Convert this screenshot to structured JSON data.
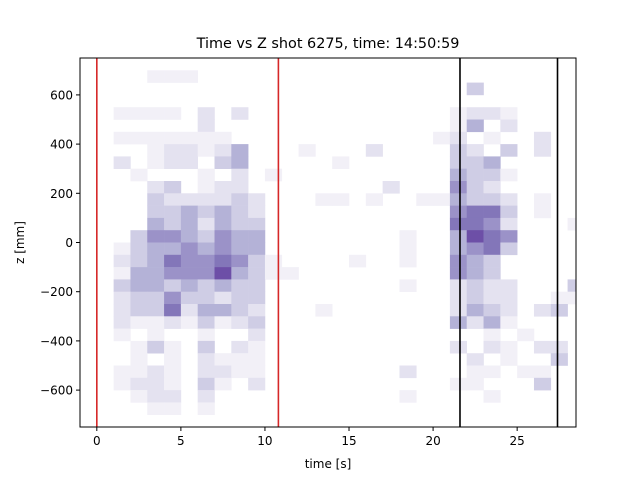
{
  "chart_data": {
    "type": "heatmap",
    "title": "Time vs Z shot 6275, time: 14:50:59",
    "xlabel": "time [s]",
    "ylabel": "z [mm]",
    "xlim": [
      -1,
      28.5
    ],
    "ylim": [
      -750,
      750
    ],
    "xticks": [
      0,
      5,
      10,
      15,
      20,
      25
    ],
    "xtick_labels": [
      "0",
      "5",
      "10",
      "15",
      "20",
      "25"
    ],
    "yticks": [
      -600,
      -400,
      -200,
      0,
      200,
      400,
      600
    ],
    "ytick_labels": [
      "−600",
      "−400",
      "−200",
      "0",
      "200",
      "400",
      "600"
    ],
    "grid": false,
    "colormap": "Purples",
    "bin_width_s": 1.0,
    "bin_height_mm": 50,
    "cells": [
      [
        3.5,
        675,
        1
      ],
      [
        4.5,
        675,
        1
      ],
      [
        5.5,
        675,
        1
      ],
      [
        22.5,
        625,
        3
      ],
      [
        1.5,
        525,
        1
      ],
      [
        2.5,
        525,
        1
      ],
      [
        3.5,
        525,
        1
      ],
      [
        4.5,
        525,
        1
      ],
      [
        6.5,
        525,
        2
      ],
      [
        8.5,
        525,
        2
      ],
      [
        21.5,
        525,
        1
      ],
      [
        22.5,
        525,
        2
      ],
      [
        23.5,
        525,
        2
      ],
      [
        24.5,
        525,
        1
      ],
      [
        6.5,
        475,
        2
      ],
      [
        21.5,
        475,
        1
      ],
      [
        22.5,
        475,
        4
      ],
      [
        24.5,
        475,
        2
      ],
      [
        1.5,
        425,
        1
      ],
      [
        2.5,
        425,
        1
      ],
      [
        3.5,
        425,
        1
      ],
      [
        4.5,
        425,
        1
      ],
      [
        5.5,
        425,
        1
      ],
      [
        6.5,
        425,
        1
      ],
      [
        7.5,
        425,
        1
      ],
      [
        20.5,
        425,
        1
      ],
      [
        21.5,
        425,
        2
      ],
      [
        23.5,
        425,
        1
      ],
      [
        26.5,
        425,
        2
      ],
      [
        3.5,
        375,
        1
      ],
      [
        4.5,
        375,
        2
      ],
      [
        5.5,
        375,
        2
      ],
      [
        6.5,
        375,
        1
      ],
      [
        7.5,
        375,
        2
      ],
      [
        8.5,
        375,
        4
      ],
      [
        12.5,
        375,
        1
      ],
      [
        16.5,
        375,
        2
      ],
      [
        21.5,
        375,
        3
      ],
      [
        22.5,
        375,
        2
      ],
      [
        24.5,
        375,
        3
      ],
      [
        26.5,
        375,
        2
      ],
      [
        1.5,
        325,
        2
      ],
      [
        3.5,
        325,
        1
      ],
      [
        4.5,
        325,
        2
      ],
      [
        5.5,
        325,
        2
      ],
      [
        7.5,
        325,
        3
      ],
      [
        8.5,
        325,
        4
      ],
      [
        14.5,
        325,
        1
      ],
      [
        21.5,
        325,
        3
      ],
      [
        22.5,
        325,
        3
      ],
      [
        23.5,
        325,
        4
      ],
      [
        2.5,
        275,
        1
      ],
      [
        6.5,
        275,
        1
      ],
      [
        8.5,
        275,
        2
      ],
      [
        10.5,
        275,
        1
      ],
      [
        21.5,
        275,
        4
      ],
      [
        22.5,
        275,
        3
      ],
      [
        23.5,
        275,
        3
      ],
      [
        24.5,
        275,
        1
      ],
      [
        3.5,
        225,
        2
      ],
      [
        4.5,
        225,
        3
      ],
      [
        6.5,
        225,
        1
      ],
      [
        7.5,
        225,
        2
      ],
      [
        8.5,
        225,
        2
      ],
      [
        17.5,
        225,
        2
      ],
      [
        21.5,
        225,
        5
      ],
      [
        22.5,
        225,
        3
      ],
      [
        23.5,
        225,
        2
      ],
      [
        3.5,
        175,
        3
      ],
      [
        4.5,
        175,
        2
      ],
      [
        5.5,
        175,
        2
      ],
      [
        6.5,
        175,
        2
      ],
      [
        7.5,
        175,
        2
      ],
      [
        8.5,
        175,
        3
      ],
      [
        9.5,
        175,
        2
      ],
      [
        13.5,
        175,
        1
      ],
      [
        14.5,
        175,
        1
      ],
      [
        16.5,
        175,
        1
      ],
      [
        19.5,
        175,
        1
      ],
      [
        20.5,
        175,
        1
      ],
      [
        21.5,
        175,
        4
      ],
      [
        22.5,
        175,
        3
      ],
      [
        23.5,
        175,
        3
      ],
      [
        24.5,
        175,
        2
      ],
      [
        26.5,
        175,
        1
      ],
      [
        3.5,
        125,
        3
      ],
      [
        4.5,
        125,
        3
      ],
      [
        5.5,
        125,
        4
      ],
      [
        6.5,
        125,
        3
      ],
      [
        7.5,
        125,
        4
      ],
      [
        8.5,
        125,
        3
      ],
      [
        9.5,
        125,
        2
      ],
      [
        21.5,
        125,
        5
      ],
      [
        22.5,
        125,
        6
      ],
      [
        23.5,
        125,
        6
      ],
      [
        24.5,
        125,
        3
      ],
      [
        26.5,
        125,
        1
      ],
      [
        3.5,
        75,
        4
      ],
      [
        4.5,
        75,
        3
      ],
      [
        5.5,
        75,
        4
      ],
      [
        6.5,
        75,
        2
      ],
      [
        7.5,
        75,
        4
      ],
      [
        8.5,
        75,
        3
      ],
      [
        9.5,
        75,
        3
      ],
      [
        21.5,
        75,
        6
      ],
      [
        22.5,
        75,
        6
      ],
      [
        23.5,
        75,
        5
      ],
      [
        24.5,
        75,
        2
      ],
      [
        28.5,
        75,
        1
      ],
      [
        2.5,
        25,
        3
      ],
      [
        3.5,
        25,
        5
      ],
      [
        4.5,
        25,
        5
      ],
      [
        5.5,
        25,
        4
      ],
      [
        6.5,
        25,
        3
      ],
      [
        7.5,
        25,
        5
      ],
      [
        8.5,
        25,
        4
      ],
      [
        9.5,
        25,
        4
      ],
      [
        18.5,
        25,
        1
      ],
      [
        21.5,
        25,
        4
      ],
      [
        22.5,
        25,
        7
      ],
      [
        23.5,
        25,
        6
      ],
      [
        24.5,
        25,
        5
      ],
      [
        1.5,
        -25,
        1
      ],
      [
        2.5,
        -25,
        3
      ],
      [
        3.5,
        -25,
        4
      ],
      [
        4.5,
        -25,
        4
      ],
      [
        5.5,
        -25,
        5
      ],
      [
        6.5,
        -25,
        4
      ],
      [
        7.5,
        -25,
        5
      ],
      [
        8.5,
        -25,
        4
      ],
      [
        9.5,
        -25,
        4
      ],
      [
        18.5,
        -25,
        1
      ],
      [
        21.5,
        -25,
        4
      ],
      [
        22.5,
        -25,
        5
      ],
      [
        23.5,
        -25,
        6
      ],
      [
        24.5,
        -25,
        3
      ],
      [
        1.5,
        -75,
        2
      ],
      [
        2.5,
        -75,
        3
      ],
      [
        3.5,
        -75,
        4
      ],
      [
        4.5,
        -75,
        6
      ],
      [
        5.5,
        -75,
        5
      ],
      [
        6.5,
        -75,
        5
      ],
      [
        7.5,
        -75,
        6
      ],
      [
        8.5,
        -75,
        5
      ],
      [
        9.5,
        -75,
        3
      ],
      [
        10.5,
        -75,
        1
      ],
      [
        15.5,
        -75,
        1
      ],
      [
        18.5,
        -75,
        1
      ],
      [
        21.5,
        -75,
        5
      ],
      [
        22.5,
        -75,
        4
      ],
      [
        23.5,
        -75,
        3
      ],
      [
        1.5,
        -125,
        1
      ],
      [
        2.5,
        -125,
        4
      ],
      [
        3.5,
        -125,
        4
      ],
      [
        4.5,
        -125,
        5
      ],
      [
        5.5,
        -125,
        5
      ],
      [
        6.5,
        -125,
        5
      ],
      [
        7.5,
        -125,
        7
      ],
      [
        8.5,
        -125,
        4
      ],
      [
        9.5,
        -125,
        3
      ],
      [
        10.5,
        -125,
        1
      ],
      [
        11.5,
        -125,
        1
      ],
      [
        21.5,
        -125,
        5
      ],
      [
        22.5,
        -125,
        4
      ],
      [
        23.5,
        -125,
        3
      ],
      [
        1.5,
        -175,
        3
      ],
      [
        2.5,
        -175,
        4
      ],
      [
        3.5,
        -175,
        4
      ],
      [
        4.5,
        -175,
        3
      ],
      [
        5.5,
        -175,
        4
      ],
      [
        6.5,
        -175,
        3
      ],
      [
        7.5,
        -175,
        4
      ],
      [
        8.5,
        -175,
        3
      ],
      [
        9.5,
        -175,
        3
      ],
      [
        18.5,
        -175,
        1
      ],
      [
        21.5,
        -175,
        2
      ],
      [
        22.5,
        -175,
        3
      ],
      [
        23.5,
        -175,
        2
      ],
      [
        24.5,
        -175,
        2
      ],
      [
        28.5,
        -175,
        3
      ],
      [
        1.5,
        -225,
        2
      ],
      [
        2.5,
        -225,
        3
      ],
      [
        3.5,
        -225,
        3
      ],
      [
        4.5,
        -225,
        5
      ],
      [
        5.5,
        -225,
        3
      ],
      [
        6.5,
        -225,
        3
      ],
      [
        7.5,
        -225,
        2
      ],
      [
        8.5,
        -225,
        3
      ],
      [
        9.5,
        -225,
        3
      ],
      [
        21.5,
        -225,
        2
      ],
      [
        22.5,
        -225,
        3
      ],
      [
        23.5,
        -225,
        2
      ],
      [
        24.5,
        -225,
        2
      ],
      [
        27.5,
        -225,
        1
      ],
      [
        28.5,
        -225,
        1
      ],
      [
        1.5,
        -275,
        2
      ],
      [
        2.5,
        -275,
        3
      ],
      [
        3.5,
        -275,
        3
      ],
      [
        4.5,
        -275,
        6
      ],
      [
        5.5,
        -275,
        2
      ],
      [
        6.5,
        -275,
        4
      ],
      [
        7.5,
        -275,
        4
      ],
      [
        8.5,
        -275,
        3
      ],
      [
        9.5,
        -275,
        2
      ],
      [
        13.5,
        -275,
        1
      ],
      [
        21.5,
        -275,
        2
      ],
      [
        22.5,
        -275,
        4
      ],
      [
        23.5,
        -275,
        3
      ],
      [
        24.5,
        -275,
        2
      ],
      [
        26.5,
        -275,
        2
      ],
      [
        27.5,
        -275,
        3
      ],
      [
        1.5,
        -325,
        2
      ],
      [
        2.5,
        -325,
        1
      ],
      [
        3.5,
        -325,
        1
      ],
      [
        4.5,
        -325,
        2
      ],
      [
        5.5,
        -325,
        1
      ],
      [
        6.5,
        -325,
        3
      ],
      [
        7.5,
        -325,
        1
      ],
      [
        8.5,
        -325,
        2
      ],
      [
        9.5,
        -325,
        3
      ],
      [
        21.5,
        -325,
        4
      ],
      [
        22.5,
        -325,
        2
      ],
      [
        23.5,
        -325,
        4
      ],
      [
        24.5,
        -325,
        1
      ],
      [
        1.5,
        -375,
        1
      ],
      [
        3.5,
        -375,
        1
      ],
      [
        6.5,
        -375,
        1
      ],
      [
        9.5,
        -375,
        2
      ],
      [
        23.5,
        -375,
        1
      ],
      [
        25.5,
        -375,
        1
      ],
      [
        2.5,
        -425,
        1
      ],
      [
        3.5,
        -425,
        3
      ],
      [
        4.5,
        -425,
        1
      ],
      [
        6.5,
        -425,
        3
      ],
      [
        8.5,
        -425,
        2
      ],
      [
        9.5,
        -425,
        1
      ],
      [
        21.5,
        -425,
        2
      ],
      [
        23.5,
        -425,
        2
      ],
      [
        24.5,
        -425,
        1
      ],
      [
        26.5,
        -425,
        2
      ],
      [
        27.5,
        -425,
        2
      ],
      [
        2.5,
        -475,
        1
      ],
      [
        4.5,
        -475,
        1
      ],
      [
        6.5,
        -475,
        2
      ],
      [
        7.5,
        -475,
        1
      ],
      [
        8.5,
        -475,
        1
      ],
      [
        9.5,
        -475,
        1
      ],
      [
        22.5,
        -475,
        2
      ],
      [
        24.5,
        -475,
        1
      ],
      [
        27.5,
        -475,
        3
      ],
      [
        1.5,
        -525,
        1
      ],
      [
        2.5,
        -525,
        1
      ],
      [
        3.5,
        -525,
        2
      ],
      [
        4.5,
        -525,
        1
      ],
      [
        6.5,
        -525,
        2
      ],
      [
        7.5,
        -525,
        2
      ],
      [
        8.5,
        -525,
        1
      ],
      [
        9.5,
        -525,
        1
      ],
      [
        18.5,
        -525,
        2
      ],
      [
        22.5,
        -525,
        1
      ],
      [
        23.5,
        -525,
        1
      ],
      [
        25.5,
        -525,
        1
      ],
      [
        26.5,
        -525,
        1
      ],
      [
        1.5,
        -575,
        1
      ],
      [
        2.5,
        -575,
        2
      ],
      [
        3.5,
        -575,
        2
      ],
      [
        4.5,
        -575,
        1
      ],
      [
        6.5,
        -575,
        3
      ],
      [
        7.5,
        -575,
        1
      ],
      [
        9.5,
        -575,
        2
      ],
      [
        21.5,
        -575,
        1
      ],
      [
        22.5,
        -575,
        1
      ],
      [
        26.5,
        -575,
        3
      ],
      [
        2.5,
        -625,
        1
      ],
      [
        3.5,
        -625,
        2
      ],
      [
        4.5,
        -625,
        2
      ],
      [
        6.5,
        -625,
        2
      ],
      [
        18.5,
        -625,
        1
      ],
      [
        23.5,
        -625,
        1
      ],
      [
        3.5,
        -675,
        1
      ],
      [
        4.5,
        -675,
        1
      ],
      [
        6.5,
        -675,
        1
      ]
    ],
    "vlines": [
      {
        "x": 0,
        "color": "#d62728"
      },
      {
        "x": 10.8,
        "color": "#d62728"
      },
      {
        "x": 21.6,
        "color": "#000000"
      },
      {
        "x": 27.4,
        "color": "#000000"
      }
    ]
  }
}
